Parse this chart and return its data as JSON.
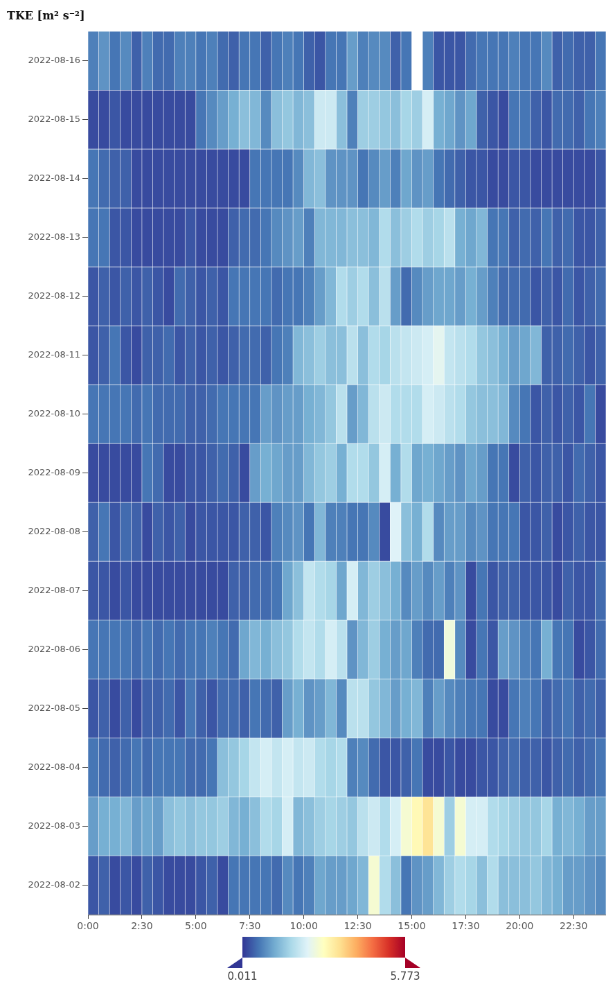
{
  "chart_data": {
    "type": "heatmap",
    "title": "TKE [m² s⁻²]",
    "x": [
      0.25,
      0.75,
      1.25,
      1.75,
      2.25,
      2.75,
      3.25,
      3.75,
      4.25,
      4.75,
      5.25,
      5.75,
      6.25,
      6.75,
      7.25,
      7.75,
      8.25,
      8.75,
      9.25,
      9.75,
      10.25,
      10.75,
      11.25,
      11.75,
      12.25,
      12.75,
      13.25,
      13.75,
      14.25,
      14.75,
      15.25,
      15.75,
      16.25,
      16.75,
      17.25,
      17.75,
      18.25,
      18.75,
      19.25,
      19.75,
      20.25,
      20.75,
      21.25,
      21.75,
      22.25,
      22.75,
      23.25,
      23.75
    ],
    "xlim": [
      0,
      24
    ],
    "xticks": [
      {
        "value": 0,
        "label": "0:00"
      },
      {
        "value": 2.5,
        "label": "2:30"
      },
      {
        "value": 5,
        "label": "5:00"
      },
      {
        "value": 7.5,
        "label": "7:30"
      },
      {
        "value": 10,
        "label": "10:00"
      },
      {
        "value": 12.5,
        "label": "12:30"
      },
      {
        "value": 15,
        "label": "15:00"
      },
      {
        "value": 17.5,
        "label": "17:30"
      },
      {
        "value": 20,
        "label": "20:00"
      },
      {
        "value": 22.5,
        "label": "22:30"
      }
    ],
    "y_categories": [
      "2022-08-16",
      "2022-08-15",
      "2022-08-14",
      "2022-08-13",
      "2022-08-12",
      "2022-08-11",
      "2022-08-10",
      "2022-08-09",
      "2022-08-08",
      "2022-08-07",
      "2022-08-06",
      "2022-08-05",
      "2022-08-04",
      "2022-08-03",
      "2022-08-02"
    ],
    "cells": [
      [
        0.7,
        0.9,
        0.6,
        0.8,
        0.4,
        0.7,
        0.5,
        0.5,
        0.7,
        0.7,
        0.6,
        0.7,
        0.5,
        0.4,
        0.6,
        0.6,
        0.4,
        0.6,
        0.7,
        0.6,
        0.4,
        0.3,
        0.6,
        0.6,
        1.0,
        0.7,
        0.8,
        0.8,
        0.4,
        0.6,
        null,
        0.7,
        0.3,
        0.3,
        0.3,
        0.5,
        0.6,
        0.6,
        0.6,
        0.7,
        0.6,
        0.6,
        0.8,
        0.4,
        0.5,
        0.4,
        0.4,
        0.6
      ],
      [
        0.2,
        0.2,
        0.3,
        0.2,
        0.2,
        0.2,
        0.2,
        0.2,
        0.2,
        0.2,
        0.6,
        0.8,
        1.0,
        1.2,
        1.4,
        1.3,
        0.8,
        1.4,
        1.5,
        1.3,
        1.4,
        2.1,
        2.1,
        1.4,
        0.7,
        1.6,
        1.6,
        1.5,
        1.4,
        1.7,
        1.6,
        2.2,
        1.2,
        1.1,
        0.9,
        1.1,
        0.4,
        0.3,
        0.2,
        0.6,
        0.6,
        0.4,
        0.3,
        0.5,
        0.5,
        0.4,
        0.6,
        0.7
      ],
      [
        0.6,
        0.5,
        0.4,
        0.4,
        0.2,
        0.2,
        0.2,
        0.2,
        0.2,
        0.2,
        0.2,
        0.2,
        0.2,
        0.2,
        0.2,
        0.6,
        0.6,
        0.6,
        0.6,
        0.8,
        1.3,
        1.4,
        0.9,
        0.9,
        0.9,
        0.6,
        0.8,
        1.0,
        0.7,
        1.1,
        0.9,
        1.0,
        0.6,
        0.5,
        0.4,
        0.3,
        0.3,
        0.2,
        0.2,
        0.3,
        0.3,
        0.2,
        0.2,
        0.2,
        0.2,
        0.2,
        0.2,
        0.3
      ],
      [
        0.6,
        0.6,
        0.3,
        0.3,
        0.2,
        0.2,
        0.2,
        0.2,
        0.2,
        0.3,
        0.2,
        0.2,
        0.2,
        0.4,
        0.5,
        0.5,
        0.6,
        0.8,
        0.9,
        1.0,
        0.7,
        1.3,
        1.3,
        1.3,
        1.4,
        1.4,
        1.3,
        1.8,
        1.4,
        1.6,
        1.8,
        1.6,
        1.7,
        1.9,
        1.2,
        1.1,
        1.3,
        0.6,
        0.6,
        0.4,
        0.5,
        0.4,
        0.6,
        0.4,
        0.5,
        0.3,
        0.3,
        0.4
      ],
      [
        0.3,
        0.4,
        0.3,
        0.4,
        0.3,
        0.4,
        0.3,
        0.2,
        0.5,
        0.4,
        0.3,
        0.4,
        0.3,
        0.6,
        0.6,
        0.6,
        0.6,
        0.5,
        0.6,
        0.6,
        0.7,
        1.0,
        1.3,
        1.8,
        1.6,
        1.8,
        1.4,
        1.9,
        1.0,
        0.5,
        0.8,
        1.0,
        1.1,
        1.1,
        1.0,
        1.2,
        1.0,
        0.7,
        0.5,
        0.5,
        0.5,
        0.3,
        0.4,
        0.3,
        0.5,
        0.3,
        0.4,
        0.5
      ],
      [
        0.3,
        0.4,
        0.6,
        0.3,
        0.2,
        0.4,
        0.4,
        0.5,
        0.3,
        0.4,
        0.3,
        0.4,
        0.3,
        0.4,
        0.5,
        0.5,
        0.4,
        0.6,
        0.7,
        1.3,
        1.4,
        1.6,
        1.4,
        1.4,
        1.9,
        1.4,
        1.8,
        1.7,
        1.9,
        2.0,
        2.1,
        2.2,
        2.4,
        2.0,
        1.9,
        1.8,
        1.5,
        1.4,
        1.2,
        1.0,
        1.1,
        1.3,
        0.4,
        0.4,
        0.5,
        0.4,
        0.3,
        0.4
      ],
      [
        0.6,
        0.6,
        0.6,
        0.6,
        0.5,
        0.6,
        0.5,
        0.5,
        0.5,
        0.4,
        0.4,
        0.5,
        0.6,
        0.6,
        0.6,
        0.6,
        1.0,
        0.9,
        1.0,
        1.0,
        1.2,
        1.3,
        1.5,
        1.9,
        1.0,
        1.3,
        1.9,
        2.1,
        1.8,
        1.8,
        1.8,
        2.2,
        2.1,
        1.9,
        1.8,
        1.5,
        1.4,
        1.4,
        1.3,
        0.8,
        0.6,
        0.3,
        0.4,
        0.3,
        0.4,
        0.3,
        0.6,
        0.2
      ],
      [
        0.2,
        0.2,
        0.2,
        0.2,
        0.2,
        0.6,
        0.5,
        0.2,
        0.2,
        0.3,
        0.3,
        0.4,
        0.5,
        0.4,
        0.2,
        1.0,
        1.2,
        1.1,
        1.0,
        1.0,
        1.3,
        1.5,
        1.6,
        1.2,
        1.8,
        1.8,
        1.5,
        2.2,
        1.2,
        1.8,
        1.1,
        1.2,
        1.1,
        1.0,
        0.9,
        1.1,
        1.0,
        0.6,
        0.6,
        0.2,
        0.4,
        0.3,
        0.4,
        0.4,
        0.3,
        0.5,
        0.4,
        0.3
      ],
      [
        0.4,
        0.6,
        0.3,
        0.5,
        0.4,
        0.2,
        0.4,
        0.3,
        0.4,
        0.2,
        0.3,
        0.3,
        0.3,
        0.3,
        0.4,
        0.4,
        0.3,
        0.7,
        0.8,
        0.9,
        0.6,
        1.3,
        0.7,
        0.7,
        0.6,
        0.6,
        0.8,
        0.2,
        2.3,
        1.4,
        1.2,
        1.8,
        0.8,
        1.0,
        1.0,
        0.8,
        0.9,
        0.6,
        0.6,
        0.6,
        0.3,
        0.3,
        0.4,
        0.2,
        0.3,
        0.4,
        0.3,
        0.3
      ],
      [
        0.3,
        0.3,
        0.2,
        0.3,
        0.2,
        0.2,
        0.2,
        0.2,
        0.2,
        0.2,
        0.2,
        0.2,
        0.2,
        0.4,
        0.4,
        0.5,
        0.5,
        0.6,
        1.1,
        1.4,
        2.0,
        1.8,
        1.7,
        1.1,
        2.2,
        1.3,
        1.6,
        1.4,
        1.2,
        0.8,
        1.0,
        0.8,
        1.0,
        0.7,
        0.9,
        0.2,
        0.6,
        0.3,
        0.4,
        0.4,
        0.3,
        0.3,
        0.3,
        0.2,
        0.4,
        0.3,
        0.3,
        0.5
      ],
      [
        0.6,
        0.6,
        0.6,
        0.6,
        0.5,
        0.6,
        0.5,
        0.6,
        0.5,
        0.6,
        0.6,
        0.7,
        0.6,
        0.5,
        1.1,
        1.3,
        1.2,
        1.4,
        1.5,
        1.8,
        2.0,
        1.8,
        2.2,
        1.9,
        0.9,
        1.3,
        1.6,
        1.2,
        1.0,
        1.1,
        0.7,
        0.5,
        0.5,
        2.6,
        0.8,
        0.2,
        0.6,
        0.3,
        1.0,
        0.9,
        0.7,
        0.6,
        1.2,
        0.6,
        0.6,
        0.2,
        0.3,
        0.5
      ],
      [
        0.3,
        0.4,
        0.2,
        0.4,
        0.2,
        0.4,
        0.4,
        0.5,
        0.3,
        0.6,
        0.4,
        0.3,
        0.5,
        0.5,
        0.4,
        0.6,
        0.5,
        0.4,
        1.0,
        1.2,
        0.9,
        1.0,
        1.3,
        0.8,
        1.9,
        1.9,
        1.5,
        1.3,
        1.0,
        1.2,
        1.3,
        0.7,
        1.0,
        0.8,
        0.7,
        0.6,
        0.6,
        0.2,
        0.2,
        0.6,
        0.7,
        0.6,
        0.4,
        0.5,
        0.6,
        0.4,
        0.5,
        0.4
      ],
      [
        0.6,
        0.5,
        0.4,
        0.5,
        0.6,
        0.5,
        0.6,
        0.6,
        0.6,
        0.5,
        0.5,
        0.6,
        1.4,
        1.5,
        1.7,
        2.0,
        2.2,
        2.0,
        2.2,
        2.0,
        2.1,
        1.8,
        1.7,
        1.8,
        0.7,
        0.8,
        0.5,
        0.3,
        0.3,
        0.4,
        0.6,
        0.2,
        0.2,
        0.3,
        0.2,
        0.2,
        0.3,
        0.3,
        0.4,
        0.5,
        0.4,
        0.4,
        0.3,
        0.4,
        0.5,
        0.4,
        0.5,
        0.6
      ],
      [
        1.0,
        1.2,
        1.2,
        1.3,
        1.0,
        1.1,
        1.0,
        1.4,
        1.5,
        1.4,
        1.5,
        1.5,
        1.6,
        1.3,
        1.2,
        1.4,
        1.8,
        1.7,
        2.2,
        1.3,
        1.4,
        1.6,
        1.7,
        1.6,
        1.5,
        1.9,
        2.1,
        1.8,
        2.2,
        2.7,
        3.0,
        3.4,
        2.7,
        1.6,
        2.7,
        2.2,
        2.2,
        1.8,
        1.7,
        1.6,
        1.5,
        1.5,
        1.7,
        1.2,
        1.3,
        1.2,
        1.0,
        1.0
      ],
      [
        0.3,
        0.4,
        0.2,
        0.3,
        0.2,
        0.4,
        0.3,
        0.2,
        0.2,
        0.2,
        0.3,
        0.4,
        0.2,
        0.6,
        0.6,
        0.6,
        0.6,
        0.5,
        0.8,
        0.6,
        0.7,
        1.1,
        1.0,
        1.0,
        1.1,
        1.3,
        2.7,
        1.8,
        1.4,
        0.6,
        0.9,
        1.0,
        1.3,
        1.6,
        1.8,
        1.7,
        1.4,
        1.8,
        1.4,
        1.4,
        1.4,
        1.5,
        1.3,
        1.2,
        1.0,
        1.0,
        0.9,
        0.8
      ]
    ],
    "clim": [
      0.011,
      5.773
    ],
    "cticks": [
      0.011,
      5.773
    ]
  }
}
